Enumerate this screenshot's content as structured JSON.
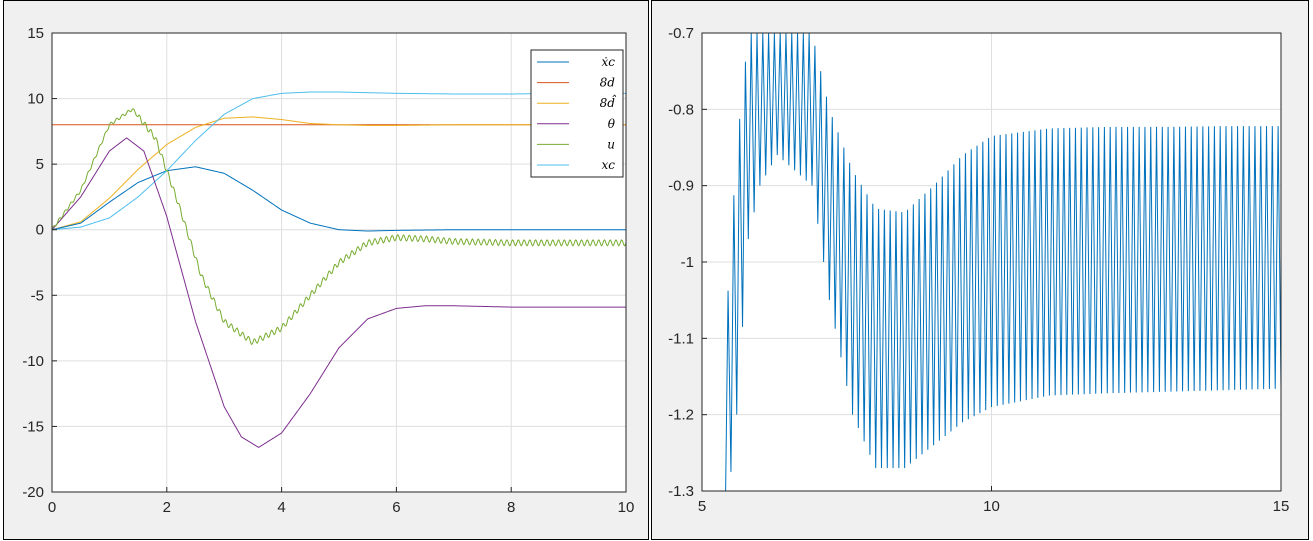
{
  "chart_data": [
    {
      "type": "line",
      "title": "",
      "xlabel": "",
      "ylabel": "",
      "xlim": [
        0,
        10
      ],
      "ylim": [
        -20,
        15
      ],
      "xticks": [
        "0",
        "2",
        "4",
        "6",
        "8",
        "10"
      ],
      "yticks": [
        "15",
        "10",
        "5",
        "0",
        "-5",
        "-10",
        "-15",
        "-20"
      ],
      "grid": true,
      "legend": "top-right",
      "series": [
        {
          "name": "ẋc",
          "color": "#0072bd",
          "x": [
            0,
            0.5,
            1,
            1.5,
            2,
            2.5,
            3,
            3.5,
            4,
            4.5,
            5,
            5.5,
            6,
            7,
            8,
            9,
            10
          ],
          "y": [
            0,
            0.5,
            2.1,
            3.6,
            4.5,
            4.8,
            4.3,
            3.0,
            1.5,
            0.5,
            0,
            -0.1,
            -0.05,
            0,
            0,
            0,
            0
          ]
        },
        {
          "name": "8d",
          "color": "#d95319",
          "x": [
            0,
            10
          ],
          "y": [
            8,
            8
          ]
        },
        {
          "name": "8d̂",
          "color": "#edb120",
          "x": [
            0,
            0.5,
            1,
            1.5,
            2,
            2.5,
            3,
            3.5,
            4,
            4.5,
            5,
            5.5,
            6,
            7,
            8,
            9,
            10
          ],
          "y": [
            0,
            0.6,
            2.4,
            4.6,
            6.5,
            7.8,
            8.5,
            8.6,
            8.4,
            8.1,
            8.0,
            7.95,
            7.95,
            8,
            8,
            8,
            8
          ]
        },
        {
          "name": "θ",
          "color": "#7e2f8e",
          "x": [
            0,
            0.5,
            1,
            1.3,
            1.6,
            2,
            2.5,
            3,
            3.3,
            3.6,
            4,
            4.5,
            5,
            5.5,
            6,
            6.5,
            7,
            8,
            9,
            10
          ],
          "y": [
            0,
            2.5,
            6,
            7,
            6,
            1,
            -7,
            -13.5,
            -15.8,
            -16.6,
            -15.5,
            -12.5,
            -9,
            -6.8,
            -6,
            -5.8,
            -5.8,
            -5.9,
            -5.9,
            -5.9
          ]
        },
        {
          "name": "u",
          "color": "#77ac30",
          "x": [
            0,
            0.5,
            1,
            1.4,
            1.8,
            2.2,
            2.6,
            3,
            3.5,
            4,
            4.5,
            5,
            5.5,
            6,
            6.5,
            7,
            8,
            9,
            10
          ],
          "y": [
            0,
            3,
            8,
            9.2,
            7,
            2,
            -3.5,
            -7,
            -8.6,
            -7.5,
            -5,
            -2.5,
            -1,
            -0.6,
            -0.7,
            -0.9,
            -1,
            -1,
            -1
          ]
        },
        {
          "name": "xc",
          "color": "#4dbeee",
          "x": [
            0,
            0.5,
            1,
            1.5,
            2,
            2.5,
            3,
            3.5,
            4,
            4.5,
            5,
            5.5,
            6,
            7,
            8,
            9,
            10
          ],
          "y": [
            0,
            0.2,
            0.9,
            2.5,
            4.5,
            6.8,
            8.8,
            10.0,
            10.4,
            10.5,
            10.5,
            10.45,
            10.4,
            10.35,
            10.35,
            10.4,
            10.4
          ]
        }
      ]
    },
    {
      "type": "line",
      "title": "",
      "xlabel": "",
      "ylabel": "",
      "xlim": [
        5,
        15
      ],
      "ylim": [
        -1.3,
        -0.7
      ],
      "xticks": [
        "5",
        "10",
        "15"
      ],
      "yticks": [
        "-0.7",
        "-0.8",
        "-0.9",
        "-1",
        "-1.1",
        "-1.2",
        "-1.3"
      ],
      "grid": true,
      "series": [
        {
          "color": "#0072bd",
          "oscillation_period": 0.1,
          "x": [
            5.4,
            5.6,
            5.8,
            6.0,
            6.3,
            6.6,
            6.9,
            7.2,
            7.6,
            8.0,
            8.5,
            9.0,
            9.5,
            10.0,
            11.0,
            12.0,
            13.0,
            14.0,
            15.0
          ],
          "y_upper": [
            -1.1,
            -0.85,
            -0.7,
            -0.7,
            -0.7,
            -0.7,
            -0.7,
            -0.8,
            -0.88,
            -0.93,
            -0.935,
            -0.9,
            -0.86,
            -0.835,
            -0.825,
            -0.823,
            -0.823,
            -0.822,
            -0.822
          ],
          "y_lower": [
            -1.35,
            -1.2,
            -0.97,
            -0.9,
            -0.86,
            -0.88,
            -0.9,
            -1.05,
            -1.2,
            -1.27,
            -1.27,
            -1.24,
            -1.21,
            -1.19,
            -1.175,
            -1.172,
            -1.17,
            -1.168,
            -1.166
          ]
        }
      ]
    }
  ]
}
